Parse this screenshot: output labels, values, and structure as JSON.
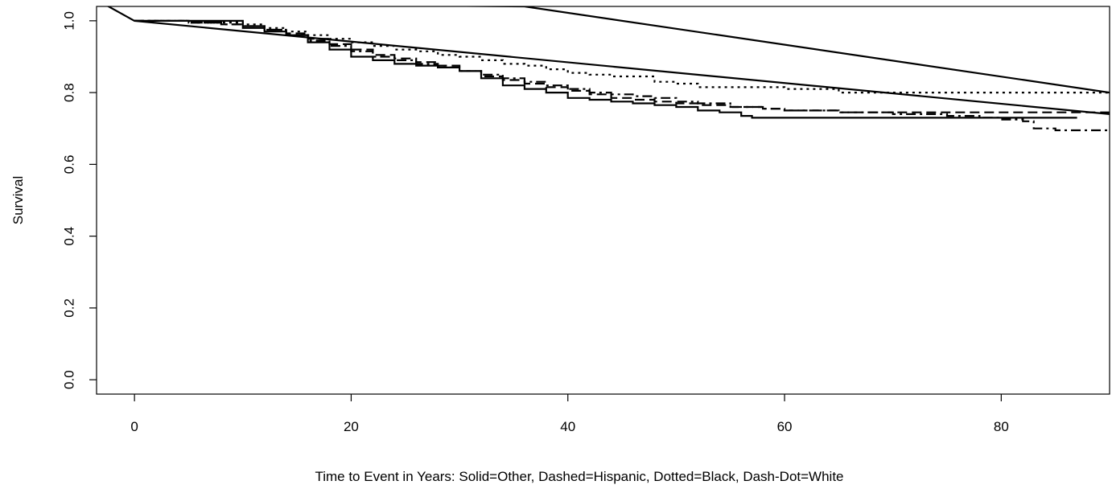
{
  "chart_data": {
    "type": "line",
    "title": "",
    "xlabel": "Time to Event in Years: Solid=Other, Dashed=Hispanic, Dotted=Black, Dash-Dot=White",
    "ylabel": "Survival",
    "xlim": [
      -3.5,
      90
    ],
    "ylim": [
      -0.04,
      1.04
    ],
    "xticks": [
      0,
      20,
      40,
      60,
      80
    ],
    "yticks": [
      0.0,
      0.2,
      0.4,
      0.6,
      0.8,
      1.0
    ],
    "xtick_labels": [
      "0",
      "20",
      "40",
      "60",
      "80"
    ],
    "ytick_labels": [
      "0.0",
      "0.2",
      "0.4",
      "0.6",
      "0.8",
      "1.0"
    ],
    "grid": false,
    "line_color": "#000000",
    "series": [
      {
        "name": "Other",
        "style": "solid",
        "x": [
          0,
          1,
          5,
          10,
          12,
          14,
          16,
          18,
          20,
          22,
          24,
          26,
          28,
          30,
          32,
          34,
          36,
          38,
          40,
          42,
          44,
          46,
          48,
          50,
          52,
          54,
          56,
          57,
          60,
          65,
          70,
          75,
          80,
          85,
          87
        ],
        "y": [
          1.0,
          1.0,
          1.0,
          0.98,
          0.97,
          0.96,
          0.94,
          0.92,
          0.9,
          0.89,
          0.88,
          0.875,
          0.87,
          0.86,
          0.84,
          0.82,
          0.81,
          0.8,
          0.785,
          0.78,
          0.775,
          0.77,
          0.765,
          0.76,
          0.75,
          0.745,
          0.735,
          0.73,
          0.73,
          0.73,
          0.73,
          0.73,
          0.73,
          0.73,
          0.73
        ]
      },
      {
        "name": "Hispanic",
        "style": "dashed",
        "x": [
          0,
          1,
          5,
          8,
          10,
          12,
          14,
          16,
          18,
          20,
          22,
          24,
          26,
          28,
          30,
          32,
          34,
          36,
          38,
          40,
          42,
          44,
          46,
          48,
          50,
          52,
          55,
          58,
          60,
          65,
          70,
          75,
          80,
          85,
          90
        ],
        "y": [
          1.0,
          1.0,
          0.995,
          0.99,
          0.985,
          0.975,
          0.965,
          0.95,
          0.935,
          0.92,
          0.905,
          0.895,
          0.885,
          0.875,
          0.86,
          0.845,
          0.835,
          0.825,
          0.815,
          0.805,
          0.795,
          0.785,
          0.78,
          0.775,
          0.77,
          0.765,
          0.76,
          0.755,
          0.75,
          0.745,
          0.745,
          0.745,
          0.745,
          0.745,
          0.745
        ]
      },
      {
        "name": "Black",
        "style": "dotted",
        "x": [
          0,
          1,
          5,
          8,
          10,
          12,
          14,
          16,
          18,
          20,
          22,
          24,
          26,
          28,
          30,
          32,
          34,
          36,
          38,
          40,
          42,
          44,
          46,
          48,
          50,
          52,
          55,
          58,
          60,
          62,
          65,
          70,
          75,
          80,
          85,
          90
        ],
        "y": [
          1.0,
          1.0,
          0.995,
          0.995,
          0.99,
          0.98,
          0.97,
          0.96,
          0.95,
          0.94,
          0.93,
          0.92,
          0.915,
          0.905,
          0.9,
          0.89,
          0.88,
          0.875,
          0.865,
          0.855,
          0.85,
          0.845,
          0.845,
          0.83,
          0.825,
          0.815,
          0.815,
          0.815,
          0.81,
          0.81,
          0.8,
          0.8,
          0.8,
          0.8,
          0.8,
          0.8
        ]
      },
      {
        "name": "White",
        "style": "dash-dot",
        "x": [
          0,
          1,
          5,
          8,
          10,
          12,
          14,
          16,
          18,
          20,
          22,
          24,
          26,
          28,
          30,
          32,
          34,
          36,
          38,
          40,
          42,
          44,
          46,
          48,
          50,
          52,
          55,
          58,
          60,
          65,
          70,
          75,
          78,
          80,
          82,
          83,
          85,
          90
        ],
        "y": [
          1.0,
          1.0,
          0.995,
          0.99,
          0.985,
          0.975,
          0.96,
          0.945,
          0.93,
          0.915,
          0.9,
          0.89,
          0.88,
          0.87,
          0.86,
          0.85,
          0.84,
          0.83,
          0.82,
          0.81,
          0.8,
          0.795,
          0.79,
          0.785,
          0.775,
          0.77,
          0.76,
          0.755,
          0.75,
          0.745,
          0.74,
          0.735,
          0.73,
          0.725,
          0.72,
          0.7,
          0.695,
          0.695
        ]
      },
      {
        "name": "",
        "style": "solid",
        "x": [
          -3,
          0,
          90
        ],
        "y": [
          1.05,
          1.0,
          0.74
        ]
      },
      {
        "name": "",
        "style": "solid",
        "x": [
          -3,
          36,
          90
        ],
        "y": [
          1.05,
          1.04,
          0.8
        ]
      }
    ]
  }
}
